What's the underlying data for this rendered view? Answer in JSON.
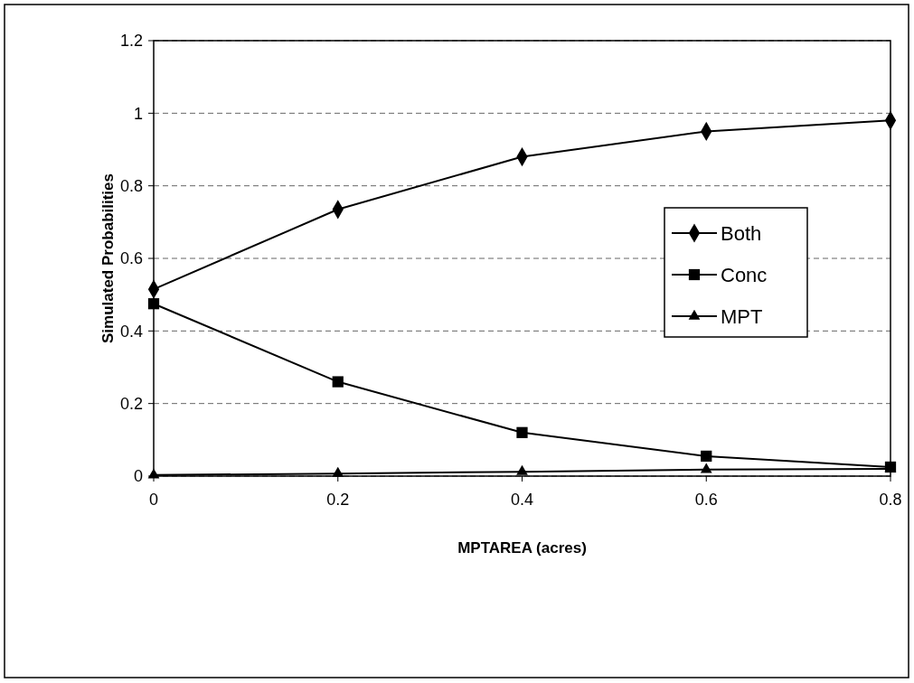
{
  "chart_data": {
    "type": "line",
    "xlabel": "MPTAREA (acres)",
    "ylabel": "Simulated Probabilities",
    "x": [
      0,
      0.2,
      0.4,
      0.6,
      0.8
    ],
    "xlim": [
      0,
      0.8
    ],
    "xticks": [
      0,
      0.2,
      0.4,
      0.6,
      0.8
    ],
    "ylim": [
      0,
      1.2
    ],
    "yticks": [
      0,
      0.2,
      0.4,
      0.6,
      0.8,
      1,
      1.2
    ],
    "grid": "y",
    "legend": "right",
    "series": [
      {
        "name": "Both",
        "color": "#000000",
        "marker": "diamond",
        "values": [
          0.515,
          0.735,
          0.88,
          0.95,
          0.98
        ]
      },
      {
        "name": "Conc",
        "color": "#000000",
        "marker": "square",
        "values": [
          0.475,
          0.26,
          0.12,
          0.055,
          0.025
        ]
      },
      {
        "name": "MPT",
        "color": "#000000",
        "marker": "triangle",
        "values": [
          0.003,
          0.007,
          0.012,
          0.018,
          0.02
        ]
      }
    ]
  }
}
